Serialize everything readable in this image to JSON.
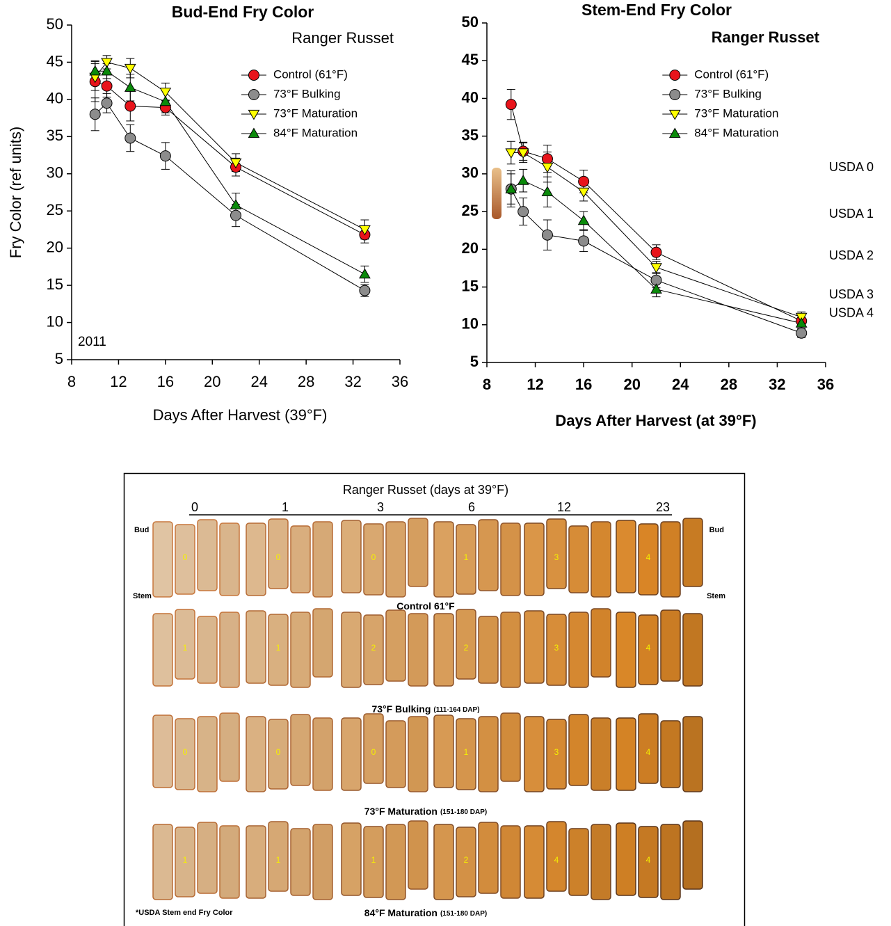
{
  "chart_data": [
    {
      "type": "line",
      "title": "Bud-End  Fry Color",
      "x_label": "Days After Harvest (39°F)",
      "y_label": "Fry Color (ref units)",
      "annotations": [
        {
          "text": "Ranger Russet"
        },
        {
          "text": "2011"
        }
      ],
      "x": [
        10,
        11,
        13,
        16,
        22,
        33
      ],
      "series": [
        {
          "name": "Control (61°F)",
          "color": "#e8141b",
          "marker": "circle",
          "values": [
            42.4,
            41.8,
            39.1,
            38.9,
            30.9,
            21.8
          ],
          "errors": [
            2.7,
            1.5,
            2.0,
            1.0,
            1.2,
            1.1
          ]
        },
        {
          "name": "73°F Bulking",
          "color": "#8c8c8c",
          "marker": "circle",
          "values": [
            38.0,
            39.5,
            34.8,
            32.4,
            24.4,
            14.3
          ],
          "errors": [
            2.2,
            1.3,
            1.8,
            1.8,
            1.5,
            0.8
          ]
        },
        {
          "name": "73°F Maturation",
          "color": "#ffff00",
          "marker": "triangle-down",
          "values": [
            43.0,
            45.0,
            44.2,
            41.0,
            31.5,
            22.5
          ],
          "errors": [
            1.8,
            0.9,
            1.3,
            1.2,
            1.2,
            1.3
          ]
        },
        {
          "name": "84°F Maturation",
          "color": "#0a8a0a",
          "marker": "triangle-up",
          "values": [
            43.8,
            43.8,
            41.6,
            39.7,
            25.8,
            16.5
          ],
          "errors": [
            1.4,
            1.0,
            1.8,
            1.5,
            1.6,
            1.1
          ]
        }
      ],
      "xlim": [
        8,
        36
      ],
      "xticks": [
        8,
        12,
        16,
        20,
        24,
        28,
        32,
        36
      ],
      "ylim": [
        5,
        50
      ],
      "yticks": [
        5,
        10,
        15,
        20,
        25,
        30,
        35,
        40,
        45,
        50
      ],
      "legend": "upper right"
    },
    {
      "type": "line",
      "title": "Stem-End Fry Color",
      "x_label": "Days After Harvest (at 39°F)",
      "annotations": [
        {
          "text": "Ranger Russet"
        }
      ],
      "side_labels": [
        {
          "text": "USDA 0",
          "y": 30.8
        },
        {
          "text": "USDA 1",
          "y": 24.6
        },
        {
          "text": "USDA 2",
          "y": 19.1
        },
        {
          "text": "USDA 3",
          "y": 13.9
        },
        {
          "text": "USDA 4",
          "y": 11.5
        }
      ],
      "x": [
        10,
        11,
        13,
        16,
        22,
        34
      ],
      "series": [
        {
          "name": "Control (61°F)",
          "color": "#e8141b",
          "marker": "circle",
          "values": [
            39.2,
            33.0,
            32.0,
            29.0,
            19.6,
            10.5
          ],
          "errors": [
            2.0,
            1.2,
            1.8,
            1.5,
            1.0,
            0.8
          ]
        },
        {
          "name": "73°F Bulking",
          "color": "#8c8c8c",
          "marker": "circle",
          "values": [
            28.0,
            25.0,
            21.9,
            21.1,
            15.9,
            8.9
          ],
          "errors": [
            2.4,
            1.8,
            2.0,
            1.4,
            1.0,
            0.6
          ]
        },
        {
          "name": "73°F Maturation",
          "color": "#ffff00",
          "marker": "triangle-down",
          "values": [
            32.8,
            32.8,
            30.9,
            27.6,
            17.6,
            11.0
          ],
          "errors": [
            1.5,
            1.3,
            2.0,
            1.2,
            0.8,
            0.7
          ]
        },
        {
          "name": "84°F Maturation",
          "color": "#0a8a0a",
          "marker": "triangle-up",
          "values": [
            28.0,
            29.1,
            27.6,
            23.8,
            14.7,
            10.2
          ],
          "errors": [
            2.0,
            1.5,
            2.0,
            1.2,
            1.0,
            0.7
          ]
        }
      ],
      "xlim": [
        8,
        36
      ],
      "xticks": [
        8,
        12,
        16,
        20,
        24,
        28,
        32,
        36
      ],
      "ylim": [
        5,
        50
      ],
      "yticks": [
        5,
        10,
        15,
        20,
        25,
        30,
        35,
        40,
        45,
        50
      ],
      "legend": "upper right"
    }
  ],
  "fry_panel": {
    "title": "Ranger Russet (days at 39°F)",
    "days": [
      "0",
      "1",
      "3",
      "6",
      "12",
      "23"
    ],
    "bud_label": "Bud",
    "stem_label": "Stem",
    "rows": [
      {
        "name": "Control 61°F",
        "ratings": [
          0,
          0,
          0,
          1,
          3,
          4
        ]
      },
      {
        "name": "73°F Bulking",
        "detail": "(111-164 DAP)",
        "ratings": [
          1,
          1,
          2,
          2,
          3,
          4
        ]
      },
      {
        "name": "73°F Maturation",
        "detail": "(151-180 DAP)",
        "ratings": [
          0,
          0,
          0,
          1,
          3,
          4
        ]
      },
      {
        "name": "84°F Maturation",
        "detail": "(151-180 DAP)",
        "ratings": [
          1,
          1,
          1,
          2,
          4,
          4
        ]
      }
    ],
    "footnote": "*USDA Stem end Fry Color"
  }
}
